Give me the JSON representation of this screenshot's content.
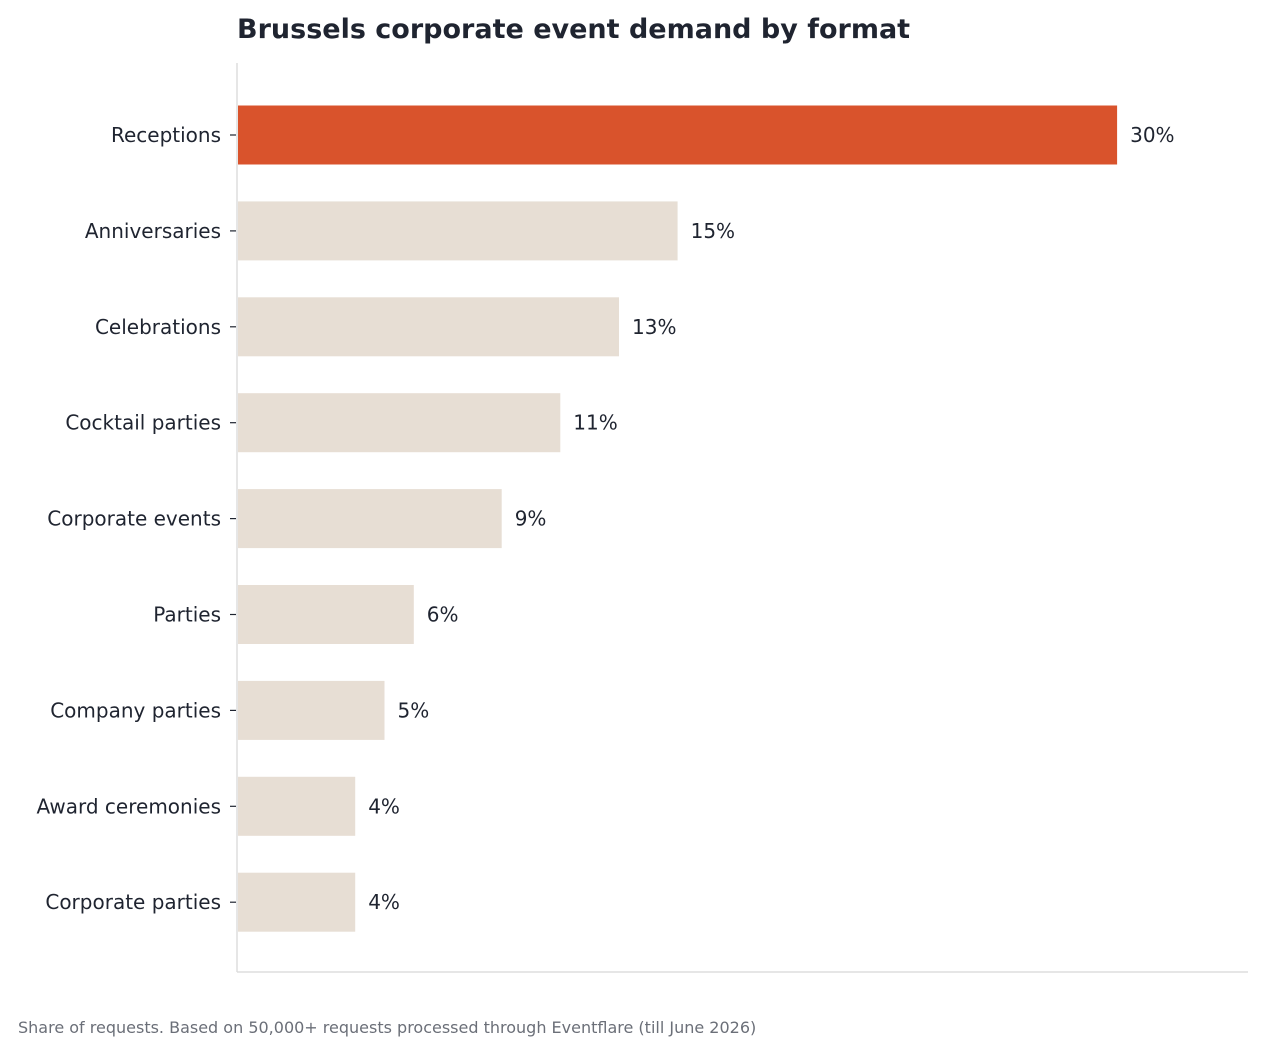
{
  "chart_data": {
    "type": "bar",
    "orientation": "horizontal",
    "title": "Brussels corporate event demand by format",
    "xlabel": "",
    "ylabel": "",
    "categories": [
      "Receptions",
      "Anniversaries",
      "Celebrations",
      "Cocktail parties",
      "Corporate events",
      "Parties",
      "Company parties",
      "Award ceremonies",
      "Corporate parties"
    ],
    "values": [
      30,
      15,
      13,
      11,
      9,
      6,
      5,
      4,
      4
    ],
    "value_labels": [
      "30%",
      "15%",
      "13%",
      "11%",
      "9%",
      "6%",
      "5%",
      "4%",
      "4%"
    ],
    "xlim": [
      0,
      34.5
    ],
    "grid": false,
    "legend": "none",
    "highlight_category": "Receptions",
    "colors": {
      "highlight": "#d9532c",
      "default": "#e7ded4",
      "text": "#1f2430",
      "axis": "#dddddd"
    }
  },
  "footnote": "Share of requests. Based on 50,000+ requests processed through Eventflare (till June 2026)"
}
